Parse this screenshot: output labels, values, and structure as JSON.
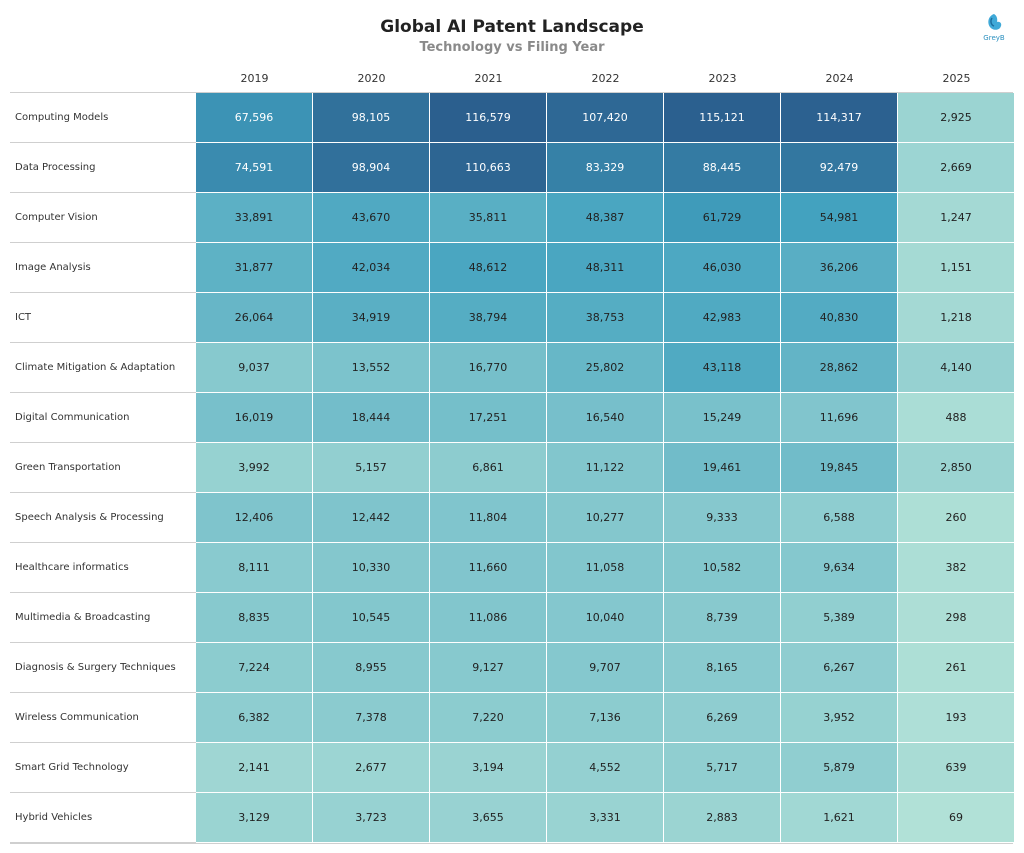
{
  "title": "Global AI Patent Landscape",
  "subtitle": "Technology vs Filing Year",
  "logo": {
    "text": "GreyB",
    "icon": "greyb-logo-icon",
    "color": "#2a8fbf"
  },
  "chart_data": {
    "type": "heatmap",
    "title": "Global AI Patent Landscape",
    "subtitle": "Technology vs Filing Year",
    "xlabel": "",
    "ylabel": "",
    "columns": [
      "2019",
      "2020",
      "2021",
      "2022",
      "2023",
      "2024",
      "2025"
    ],
    "rows": [
      {
        "label": "Computing Models",
        "values": [
          67596,
          98105,
          116579,
          107420,
          115121,
          114317,
          2925
        ]
      },
      {
        "label": "Data Processing",
        "values": [
          74591,
          98904,
          110663,
          83329,
          88445,
          92479,
          2669
        ]
      },
      {
        "label": "Computer Vision",
        "values": [
          33891,
          43670,
          35811,
          48387,
          61729,
          54981,
          1247
        ]
      },
      {
        "label": "Image Analysis",
        "values": [
          31877,
          42034,
          48612,
          48311,
          46030,
          36206,
          1151
        ]
      },
      {
        "label": "ICT",
        "values": [
          26064,
          34919,
          38794,
          38753,
          42983,
          40830,
          1218
        ]
      },
      {
        "label": "Climate Mitigation & Adaptation",
        "values": [
          9037,
          13552,
          16770,
          25802,
          43118,
          28862,
          4140
        ]
      },
      {
        "label": "Digital Communication",
        "values": [
          16019,
          18444,
          17251,
          16540,
          15249,
          11696,
          488
        ]
      },
      {
        "label": "Green Transportation",
        "values": [
          3992,
          5157,
          6861,
          11122,
          19461,
          19845,
          2850
        ]
      },
      {
        "label": "Speech Analysis & Processing",
        "values": [
          12406,
          12442,
          11804,
          10277,
          9333,
          6588,
          260
        ]
      },
      {
        "label": "Healthcare informatics",
        "values": [
          8111,
          10330,
          11660,
          11058,
          10582,
          9634,
          382
        ]
      },
      {
        "label": "Multimedia & Broadcasting",
        "values": [
          8835,
          10545,
          11086,
          10040,
          8739,
          5389,
          298
        ]
      },
      {
        "label": "Diagnosis & Surgery Techniques",
        "values": [
          7224,
          8955,
          9127,
          9707,
          8165,
          6267,
          261
        ]
      },
      {
        "label": "Wireless Communication",
        "values": [
          6382,
          7378,
          7220,
          7136,
          6269,
          3952,
          193
        ]
      },
      {
        "label": "Smart Grid Technology",
        "values": [
          2141,
          2677,
          3194,
          4552,
          5717,
          5879,
          639
        ]
      },
      {
        "label": "Hybrid Vehicles",
        "values": [
          3129,
          3723,
          3655,
          3331,
          2883,
          1621,
          69
        ]
      }
    ],
    "color_scale": {
      "low": "#b5e3d8",
      "mid": "#41a1bf",
      "high": "#2b5f8e",
      "text_dark": "#222222",
      "text_light": "#ffffff"
    }
  }
}
